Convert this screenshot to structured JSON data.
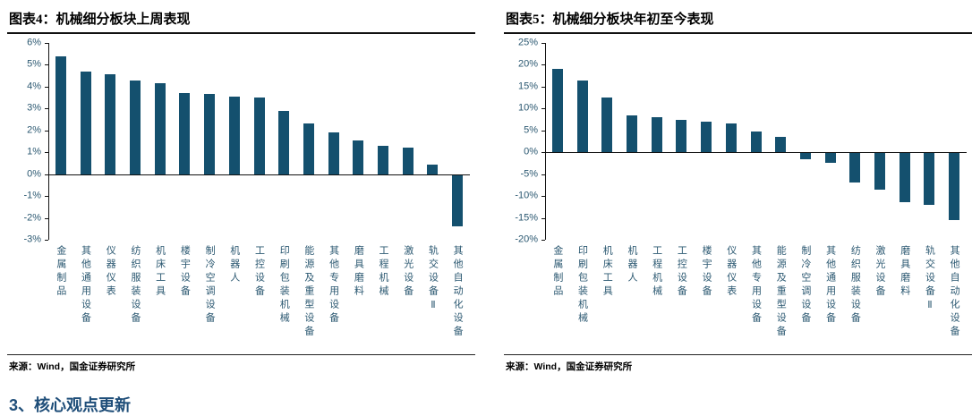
{
  "page": {
    "section_heading": "3、核心观点更新"
  },
  "colors": {
    "bar": "#14506E",
    "axis_label": "#2B5871",
    "heading": "#1F4E79",
    "axis_line": "#111111"
  },
  "figures": [
    {
      "source": "来源：Wind，国金证券研究所"
    },
    {
      "source": "来源：Wind，国金证券研究所"
    }
  ],
  "chart_data": [
    {
      "type": "bar",
      "title": "图表4：机械细分板块上周表现",
      "categories": [
        "金属制品",
        "其他通用设备",
        "仪器仪表",
        "纺织服装设备",
        "机床工具",
        "楼宇设备",
        "制冷空调设备",
        "机器人",
        "工控设备",
        "印刷包装机械",
        "能源及重型设备",
        "其他专用设备",
        "磨具磨料",
        "工程机械",
        "激光设备",
        "轨交设备Ⅱ",
        "其他自动化设备"
      ],
      "values": [
        5.4,
        4.7,
        4.55,
        4.3,
        4.15,
        3.7,
        3.65,
        3.55,
        3.5,
        2.9,
        2.3,
        1.9,
        1.55,
        1.3,
        1.2,
        0.45,
        -2.4
      ],
      "xlabel": "",
      "ylabel": "",
      "ylim": [
        -3,
        6
      ],
      "yticks": [
        6,
        5,
        4,
        3,
        2,
        1,
        0,
        -1,
        -2,
        -3
      ],
      "ytick_suffix": "%",
      "grid": false,
      "legend": "none",
      "bar_color": "#14506E",
      "label_color": "#2B5871"
    },
    {
      "type": "bar",
      "title": "图表5：机械细分板块年初至今表现",
      "categories": [
        "金属制品",
        "印刷包装机械",
        "机床工具",
        "机器人",
        "工程机械",
        "工控设备",
        "楼宇设备",
        "仪器仪表",
        "其他专用设备",
        "能源及重型设备",
        "制冷空调设备",
        "其他通用设备",
        "纺织服装设备",
        "激光设备",
        "磨具磨料",
        "轨交设备Ⅱ",
        "其他自动化设备"
      ],
      "values": [
        19,
        16.5,
        12.5,
        8.5,
        8,
        7.5,
        7,
        6.5,
        4.8,
        3.5,
        -1.5,
        -2.5,
        -7,
        -8.5,
        -11.5,
        -12,
        -15.5
      ],
      "xlabel": "",
      "ylabel": "",
      "ylim": [
        -20,
        25
      ],
      "yticks": [
        25,
        20,
        15,
        10,
        5,
        0,
        -5,
        -10,
        -15,
        -20
      ],
      "ytick_suffix": "%",
      "grid": false,
      "legend": "none",
      "bar_color": "#14506E",
      "label_color": "#2B5871"
    }
  ]
}
